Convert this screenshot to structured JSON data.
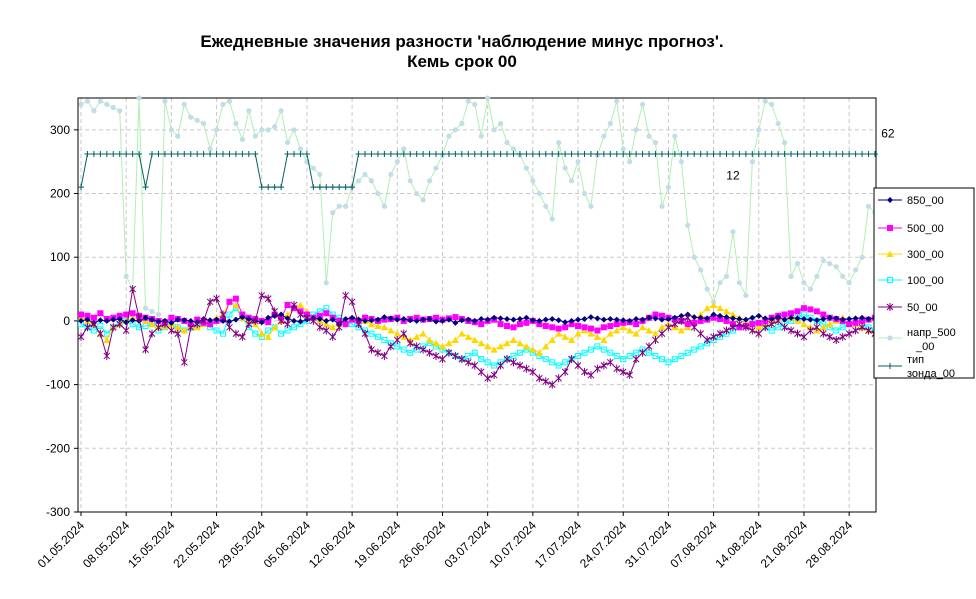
{
  "chart_data": {
    "type": "line",
    "title": [
      "Ежедневные значения разности 'наблюдение минус прогноз'.",
      "Кемь      срок 00"
    ],
    "xlabel": "",
    "ylabel": "",
    "ylim": [
      -300,
      350
    ],
    "yticks": [
      "300",
      "200",
      "100",
      "0",
      "-100",
      "-200",
      "-300"
    ],
    "grid": true,
    "legend_position": "right",
    "x_start": "01.05.2024",
    "xtick_labels": [
      "01.05.2024",
      "08.05.2024",
      "15.05.2024",
      "22.05.2024",
      "29.05.2024",
      "05.06.2024",
      "12.06.2024",
      "19.06.2024",
      "26.06.2024",
      "03.07.2024",
      "10.07.2024",
      "17.07.2024",
      "24.07.2024",
      "31.07.2024",
      "07.08.2024",
      "14.08.2024",
      "21.08.2024",
      "28.08.2024"
    ],
    "annotations": [
      {
        "text": "12",
        "date": "10.08.2024",
        "y": 222
      },
      {
        "text": "62",
        "date": "03.09.2024",
        "y": 288
      }
    ],
    "series": [
      {
        "name": "850_00",
        "color": "#000080",
        "marker": "diamond",
        "line": true,
        "values": [
          0,
          2,
          -3,
          1,
          0,
          2,
          3,
          -2,
          1,
          0,
          5,
          2,
          -1,
          0,
          -3,
          2,
          1,
          0,
          -2,
          3,
          1,
          2,
          0,
          -1,
          2,
          6,
          3,
          0,
          -2,
          5,
          8,
          10,
          4,
          0,
          -1,
          2,
          4,
          3,
          0,
          2,
          -5,
          3,
          5,
          2,
          0,
          1,
          2,
          6,
          4,
          2,
          3,
          1,
          0,
          2,
          3,
          -1,
          0,
          2,
          -3,
          1,
          2,
          0,
          3,
          2,
          5,
          4,
          3,
          2,
          3,
          5,
          1,
          0,
          2,
          3,
          1,
          -2,
          0,
          2,
          3,
          6,
          4,
          2,
          3,
          2,
          1,
          0,
          3,
          2,
          5,
          4,
          2,
          3,
          5,
          8,
          10,
          6,
          5,
          4,
          10,
          8,
          6,
          4,
          3,
          2,
          5,
          8,
          4,
          3,
          6,
          2,
          5,
          4,
          3,
          2,
          1,
          3,
          5,
          4,
          2,
          3,
          4,
          5,
          3,
          4,
          2,
          3,
          1,
          0,
          2,
          1,
          3,
          5,
          2,
          3,
          4,
          2,
          3,
          5,
          4,
          6,
          5,
          3,
          4,
          5,
          3,
          2,
          4,
          3,
          5,
          2,
          1,
          3,
          4,
          5,
          2
        ]
      },
      {
        "name": "500_00",
        "color": "#ff00ff",
        "marker": "square",
        "line": true,
        "values": [
          10,
          8,
          5,
          12,
          3,
          5,
          8,
          10,
          12,
          8,
          5,
          3,
          0,
          -2,
          5,
          3,
          0,
          -5,
          2,
          -3,
          -5,
          0,
          2,
          30,
          35,
          10,
          5,
          3,
          0,
          -2,
          10,
          5,
          25,
          20,
          15,
          10,
          5,
          8,
          12,
          5,
          0,
          -5,
          2,
          0,
          5,
          3,
          0,
          2,
          3,
          5,
          0,
          3,
          5,
          2,
          3,
          5,
          2,
          4,
          6,
          3,
          0,
          -2,
          -5,
          0,
          2,
          -5,
          -8,
          -10,
          -5,
          -3,
          0,
          -5,
          -8,
          -10,
          -12,
          -10,
          -5,
          -8,
          -10,
          -12,
          -15,
          -10,
          -8,
          -5,
          -3,
          -2,
          -5,
          0,
          5,
          10,
          8,
          5,
          3,
          0,
          -5,
          -3,
          0,
          2,
          5,
          3,
          0,
          -5,
          -10,
          -8,
          -5,
          -3,
          0,
          5,
          8,
          10,
          12,
          15,
          20,
          18,
          15,
          10,
          5,
          3,
          0,
          -5,
          -3,
          0,
          2,
          5,
          3,
          0,
          -5,
          -3,
          0,
          5,
          8,
          10,
          12,
          10,
          8,
          5,
          3,
          0,
          -2,
          -5,
          -8,
          -10,
          -5,
          -3,
          0,
          3,
          5,
          8,
          10,
          8,
          5,
          3,
          0,
          5,
          8
        ]
      },
      {
        "name": "300_00",
        "color": "#ffd700",
        "marker": "triangle",
        "line": true,
        "values": [
          5,
          0,
          -5,
          -20,
          -30,
          -10,
          -5,
          0,
          5,
          3,
          0,
          -5,
          -10,
          -8,
          -5,
          -10,
          -15,
          -8,
          -10,
          -5,
          0,
          5,
          10,
          30,
          25,
          5,
          0,
          -5,
          -20,
          -25,
          -10,
          0,
          10,
          20,
          25,
          15,
          5,
          0,
          -5,
          -10,
          -5,
          0,
          5,
          3,
          0,
          -5,
          -8,
          -10,
          -15,
          -20,
          -25,
          -30,
          -25,
          -20,
          -30,
          -35,
          -40,
          -35,
          -30,
          -20,
          -25,
          -30,
          -35,
          -40,
          -45,
          -40,
          -35,
          -30,
          -35,
          -40,
          -45,
          -50,
          -40,
          -30,
          -20,
          -25,
          -30,
          -20,
          -15,
          -20,
          -25,
          -30,
          -20,
          -15,
          -10,
          -15,
          -20,
          -10,
          -15,
          -20,
          -10,
          -5,
          -10,
          -15,
          -10,
          0,
          10,
          20,
          25,
          20,
          15,
          10,
          5,
          0,
          -5,
          -10,
          -5,
          0,
          5,
          10,
          5,
          0,
          -5,
          -10,
          -15,
          -10,
          -5,
          0,
          5,
          0,
          -5,
          -10,
          -15,
          -20,
          -10,
          -5,
          0,
          5,
          -5,
          -10,
          -5,
          0,
          5,
          10,
          15,
          10,
          5,
          0,
          -5,
          -10,
          -15,
          -20,
          -10,
          -5,
          0,
          5,
          3,
          0,
          -5,
          -10,
          -5,
          0,
          5,
          3,
          0,
          -5,
          -10,
          -15,
          -5
        ]
      },
      {
        "name": "100_00",
        "color": "#00ffff",
        "marker": "square-open",
        "line": true,
        "values": [
          -5,
          -10,
          -15,
          -8,
          -20,
          -10,
          -5,
          0,
          -5,
          -10,
          -8,
          -5,
          -15,
          -10,
          -5,
          -10,
          -15,
          -10,
          -8,
          -5,
          -10,
          -15,
          -20,
          10,
          20,
          5,
          -10,
          -20,
          -25,
          -15,
          -10,
          -20,
          -15,
          -10,
          -5,
          0,
          10,
          15,
          20,
          10,
          5,
          0,
          -5,
          -10,
          -15,
          -20,
          -25,
          -30,
          -35,
          -40,
          -45,
          -50,
          -45,
          -40,
          -35,
          -40,
          -45,
          -50,
          -55,
          -60,
          -55,
          -50,
          -60,
          -65,
          -70,
          -65,
          -60,
          -55,
          -50,
          -45,
          -50,
          -55,
          -60,
          -65,
          -70,
          -65,
          -60,
          -55,
          -50,
          -45,
          -40,
          -45,
          -50,
          -55,
          -60,
          -55,
          -50,
          -45,
          -50,
          -55,
          -60,
          -65,
          -60,
          -55,
          -50,
          -45,
          -40,
          -35,
          -30,
          -25,
          -20,
          -15,
          -10,
          -5,
          0,
          -5,
          -10,
          -15,
          -10,
          -5,
          0,
          5,
          10,
          5,
          0,
          -5,
          -10,
          -15,
          -10,
          -5,
          0,
          -5,
          -10,
          -15,
          -10,
          -5,
          0,
          -5,
          -10,
          -5,
          0,
          5,
          10,
          5,
          0,
          -5,
          -10,
          -15,
          -20,
          -15,
          -10,
          -5,
          0,
          -5,
          -10,
          -15,
          -10,
          -5,
          0,
          -5,
          -10,
          -15,
          -20,
          -15,
          -10
        ]
      },
      {
        "name": "50_00",
        "color": "#800080",
        "marker": "star",
        "line": true,
        "values": [
          -25,
          -10,
          -5,
          -20,
          -55,
          -10,
          -5,
          -15,
          50,
          5,
          -45,
          -20,
          -10,
          -5,
          -15,
          -20,
          -65,
          -10,
          -5,
          0,
          30,
          35,
          10,
          -10,
          -20,
          -25,
          -5,
          0,
          40,
          35,
          15,
          0,
          -5,
          25,
          10,
          5,
          0,
          -10,
          -15,
          -25,
          -10,
          40,
          30,
          -5,
          -20,
          -45,
          -50,
          -55,
          -40,
          -30,
          -20,
          -35,
          -40,
          -45,
          -50,
          -55,
          -60,
          -50,
          -55,
          -60,
          -65,
          -70,
          -80,
          -90,
          -85,
          -70,
          -60,
          -65,
          -70,
          -75,
          -80,
          -90,
          -95,
          -100,
          -90,
          -80,
          -60,
          -70,
          -80,
          -85,
          -75,
          -70,
          -65,
          -75,
          -80,
          -85,
          -60,
          -50,
          -40,
          -30,
          -20,
          -10,
          -5,
          0,
          5,
          -10,
          -20,
          -30,
          -25,
          -20,
          -15,
          -10,
          -5,
          -10,
          -15,
          -20,
          -10,
          -5,
          0,
          -10,
          -15,
          -20,
          -25,
          -15,
          -10,
          -20,
          -25,
          -30,
          -25,
          -20,
          -15,
          -10,
          -15,
          -20,
          -25,
          -30,
          -25,
          -20,
          -15,
          -10,
          -5,
          0,
          -10,
          -20,
          -15,
          -10,
          -5,
          0,
          5,
          10,
          15,
          20,
          15,
          10,
          -20,
          -50,
          -30,
          -20,
          -25,
          -35,
          -30,
          -25,
          -10,
          5,
          -5,
          -10
        ]
      },
      {
        "name": "напр_500_00",
        "color": "#c0dde8",
        "marker": "circle",
        "line": true,
        "line_color": "#b0f0b0",
        "values": [
          340,
          345,
          330,
          345,
          340,
          335,
          330,
          70,
          50,
          350,
          20,
          15,
          10,
          345,
          300,
          290,
          340,
          320,
          315,
          310,
          270,
          300,
          340,
          345,
          310,
          285,
          330,
          290,
          300,
          300,
          305,
          330,
          280,
          300,
          270,
          250,
          240,
          230,
          60,
          170,
          180,
          180,
          210,
          220,
          230,
          220,
          200,
          180,
          230,
          250,
          270,
          220,
          200,
          190,
          220,
          240,
          260,
          290,
          300,
          310,
          345,
          340,
          290,
          350,
          300,
          310,
          280,
          270,
          260,
          240,
          220,
          200,
          180,
          160,
          280,
          240,
          220,
          250,
          200,
          180,
          260,
          290,
          310,
          345,
          270,
          250,
          300,
          340,
          290,
          280,
          180,
          210,
          290,
          250,
          150,
          100,
          80,
          50,
          30,
          60,
          70,
          140,
          60,
          40,
          250,
          300,
          345,
          340,
          310,
          280,
          70,
          90,
          60,
          50,
          70,
          95,
          90,
          85,
          70,
          60,
          80,
          100,
          180,
          170,
          150,
          100,
          40,
          30,
          300,
          345,
          280,
          240,
          220,
          290,
          280,
          310,
          230,
          190,
          150,
          270,
          260,
          230,
          240,
          250,
          260,
          270,
          290,
          280,
          270,
          230
        ]
      },
      {
        "name": "тип зонда_00",
        "color": "#006060",
        "marker": "plus",
        "line": true,
        "values": [
          210,
          262,
          262,
          262,
          262,
          262,
          262,
          262,
          262,
          262,
          210,
          262,
          262,
          262,
          262,
          262,
          262,
          262,
          262,
          262,
          262,
          262,
          262,
          262,
          262,
          262,
          262,
          262,
          210,
          210,
          210,
          210,
          262,
          262,
          262,
          262,
          210,
          210,
          210,
          210,
          210,
          210,
          210,
          262,
          262,
          262,
          262,
          262,
          262,
          262,
          262,
          262,
          262,
          262,
          262,
          262,
          262,
          262,
          262,
          262,
          262,
          262,
          262,
          262,
          262,
          262,
          262,
          262,
          262,
          262,
          262,
          262,
          262,
          262,
          262,
          262,
          262,
          262,
          262,
          262,
          262,
          262,
          262,
          262,
          262,
          262,
          262,
          262,
          262,
          262,
          262,
          262,
          262,
          262,
          262,
          262,
          262,
          262,
          262,
          262,
          262,
          262,
          262,
          262,
          262,
          262,
          262,
          262,
          262,
          262,
          262,
          262,
          262,
          262,
          262,
          262,
          262,
          262,
          262,
          262,
          262,
          262,
          262,
          262,
          262,
          262,
          262,
          262,
          262,
          262,
          262,
          262,
          262,
          262,
          262,
          262,
          262,
          262,
          262,
          262,
          262,
          262,
          262,
          262,
          262,
          262,
          262,
          262,
          262,
          262,
          262,
          262,
          262,
          262
        ]
      }
    ],
    "legend": [
      "850_00",
      "500_00",
      "300_00",
      "100_00",
      "50_00",
      "напр_500_00",
      "тип зонда_00"
    ]
  }
}
